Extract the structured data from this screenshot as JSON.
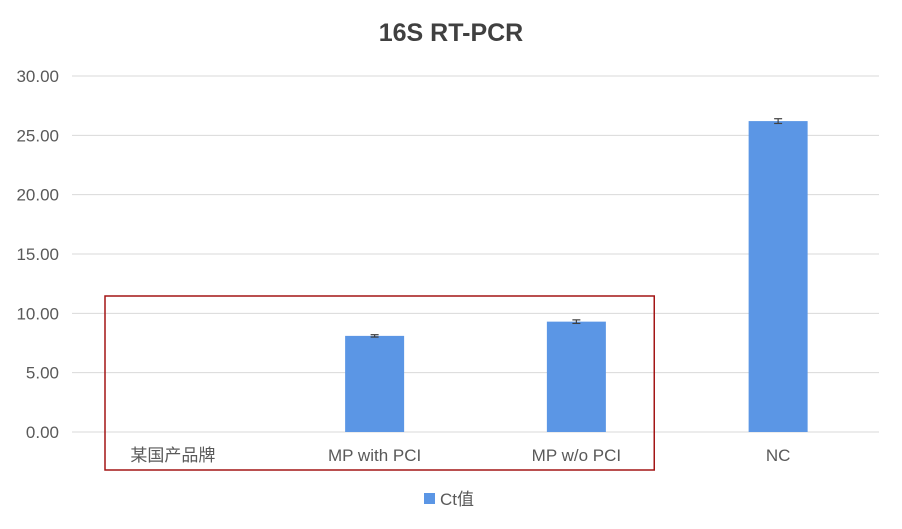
{
  "chart_data": {
    "type": "bar",
    "title": "16S RT-PCR",
    "xlabel": "",
    "ylabel": "",
    "categories": [
      "某国产品牌",
      "MP with PCI",
      "MP w/o PCI",
      "NC"
    ],
    "series": [
      {
        "name": "Ct值",
        "values": [
          0,
          8.1,
          9.3,
          26.2
        ],
        "error": [
          0,
          0.1,
          0.15,
          0.2
        ]
      }
    ],
    "ylim": [
      0,
      30
    ],
    "y_ticks": [
      "0.00",
      "5.00",
      "10.00",
      "15.00",
      "20.00",
      "25.00",
      "30.00"
    ],
    "y_tick_values": [
      0,
      5,
      10,
      15,
      20,
      25,
      30
    ],
    "grid": true,
    "legend_position": "bottom",
    "highlight_box_categories": [
      "某国产品牌",
      "MP with PCI",
      "MP w/o PCI"
    ],
    "colors": {
      "bar": "#5b96e5",
      "grid": "#d9d9d9",
      "highlight_box": "#a31515",
      "error_bar": "#404040"
    }
  }
}
